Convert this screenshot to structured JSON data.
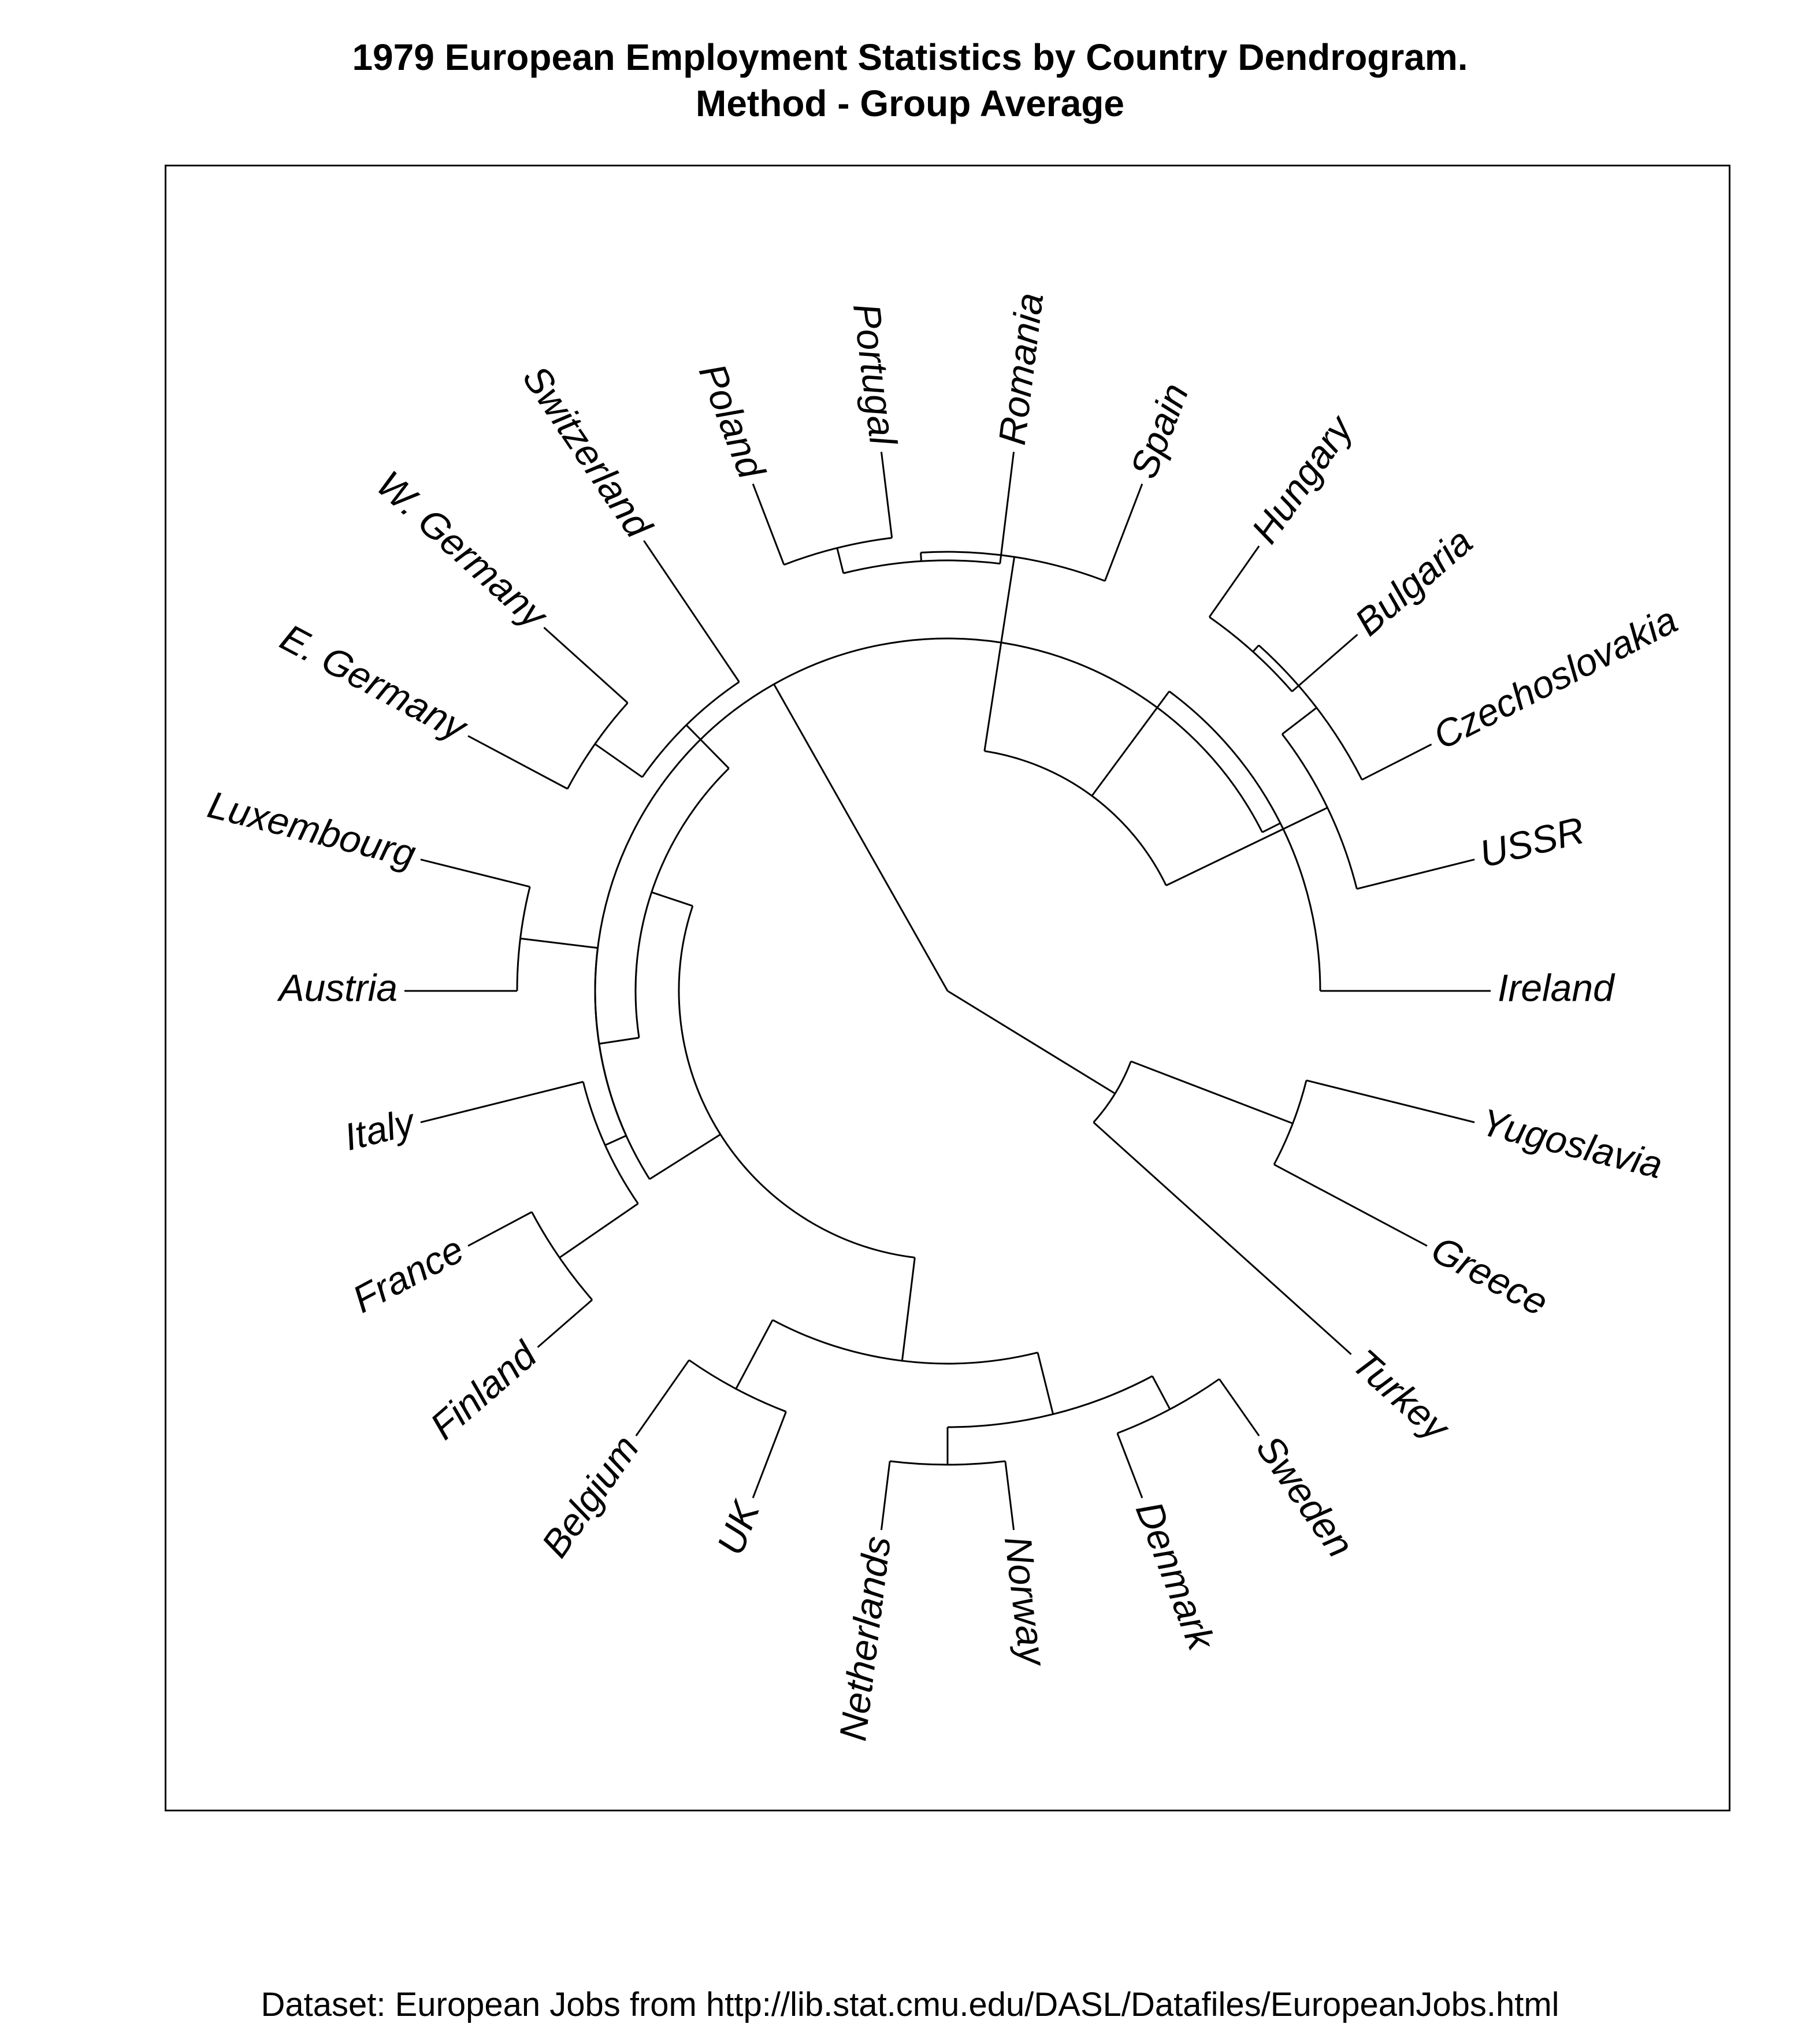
{
  "title": {
    "line1": "1979 European Employment Statistics by Country Dendrogram.",
    "line2": "Method -  Group Average"
  },
  "footer": "Dataset: European Jobs from http://lib.stat.cmu.edu/DASL/Datafiles/EuropeanJobs.html",
  "leaves": [
    "Ireland",
    "USSR",
    "Czechoslovakia",
    "Bulgaria",
    "Hungary",
    "Spain",
    "Romania",
    "Portugal",
    "Poland",
    "Switzerland",
    "W. Germany",
    "E. Germany",
    "Luxembourg",
    "Austria",
    "Italy",
    "France",
    "Finland",
    "Belgium",
    "UK",
    "Netherlands",
    "Norway",
    "Denmark",
    "Sweden",
    "Turkey",
    "Greece",
    "Yugoslavia"
  ],
  "tree": [
    {
      "name": "n_root",
      "children": [
        "n_L",
        "Turkey_GY"
      ]
    },
    {
      "name": "Turkey_GY",
      "children": [
        "Turkey",
        "n_GY"
      ]
    },
    {
      "name": "n_GY",
      "children": [
        "Greece",
        "Yugoslavia"
      ]
    },
    {
      "name": "n_L",
      "children": [
        "n_West",
        "n_East"
      ]
    },
    {
      "name": "n_East",
      "children": [
        "n_EastA",
        "Ireland"
      ]
    },
    {
      "name": "n_EastA",
      "children": [
        "n_EastB",
        "n_EastC"
      ]
    },
    {
      "name": "n_EastB",
      "children": [
        "USSR",
        "n_CB"
      ]
    },
    {
      "name": "n_CB",
      "children": [
        "Czechoslovakia",
        "n_BH"
      ]
    },
    {
      "name": "n_BH",
      "children": [
        "Bulgaria",
        "Hungary"
      ]
    },
    {
      "name": "n_EastC",
      "children": [
        "Spain",
        "n_RPP"
      ]
    },
    {
      "name": "n_RPP",
      "children": [
        "Romania",
        "n_PP"
      ]
    },
    {
      "name": "n_PP",
      "children": [
        "Portugal",
        "Poland"
      ]
    },
    {
      "name": "n_West",
      "children": [
        "n_WA",
        "n_WB"
      ]
    },
    {
      "name": "n_WA",
      "children": [
        "n_Swi",
        "n_LA"
      ]
    },
    {
      "name": "n_Swi",
      "children": [
        "Switzerland",
        "n_Ger"
      ]
    },
    {
      "name": "n_Ger",
      "children": [
        "W. Germany",
        "E. Germany"
      ]
    },
    {
      "name": "n_LA",
      "children": [
        "n_LuxAus",
        "n_IFF"
      ]
    },
    {
      "name": "n_LuxAus",
      "children": [
        "Luxembourg",
        "Austria"
      ]
    },
    {
      "name": "n_IFF",
      "children": [
        "Italy",
        "n_FF"
      ]
    },
    {
      "name": "n_FF",
      "children": [
        "France",
        "Finland"
      ]
    },
    {
      "name": "n_WB",
      "children": [
        "n_BUK",
        "n_NNDS"
      ]
    },
    {
      "name": "n_BUK",
      "children": [
        "Belgium",
        "UK"
      ]
    },
    {
      "name": "n_NNDS",
      "children": [
        "n_NN",
        "n_DS"
      ]
    },
    {
      "name": "n_NN",
      "children": [
        "Netherlands",
        "Norway"
      ]
    },
    {
      "name": "n_DS",
      "children": [
        "Denmark",
        "Sweden"
      ]
    }
  ]
}
